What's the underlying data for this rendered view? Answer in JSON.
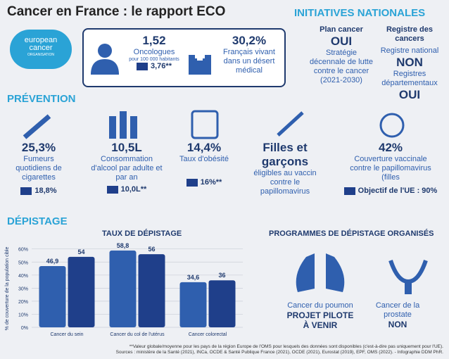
{
  "header": {
    "title": "Cancer en France : le rapport ECO",
    "logo": [
      "european",
      "cancer",
      "ORGANISATION"
    ]
  },
  "key_stats": {
    "oncologists": {
      "value": "1,52",
      "label": "Oncologues",
      "sub": "pour 100 000 habitants",
      "eu": "3,76**"
    },
    "desert": {
      "value": "30,2%",
      "label": "Français vivant dans un désert médical"
    }
  },
  "initiatives": {
    "heading": "INITIATIVES NATIONALES",
    "plan": {
      "title": "Plan cancer",
      "answer": "OUI",
      "detail": "Stratégie décennale de lutte contre le cancer (2021-2030)"
    },
    "registry": {
      "title": "Registre des cancers",
      "national": "Registre national",
      "national_answer": "NON",
      "departmental": "Registres départementaux",
      "departmental_answer": "OUI"
    }
  },
  "prevention": {
    "heading": "PRÉVENTION",
    "items": [
      {
        "value": "25,3%",
        "label": "Fumeurs quotidiens de cigarettes",
        "eu": "18,8%"
      },
      {
        "value": "10,5L",
        "label": "Consommation d'alcool par adulte et par an",
        "eu": "10,0L**"
      },
      {
        "value": "14,4%",
        "label": "Taux d'obésité",
        "eu": "16%**"
      },
      {
        "value": "Filles et garçons",
        "label": "éligibles au vaccin contre le papillomavirus"
      },
      {
        "value": "42%",
        "label": "Couverture vaccinale contre le papillomavirus (filles",
        "eu": "Objectif de l'UE : 90%"
      }
    ]
  },
  "screening": {
    "heading": "DÉPISTAGE",
    "programmes": {
      "title": "PROGRAMMES DE DÉPISTAGE ORGANISÉS",
      "lung": {
        "label": "Cancer du poumon",
        "status": "PROJET PILOTE À VENIR"
      },
      "prostate": {
        "label": "Cancer de la prostate",
        "status": "NON"
      }
    }
  },
  "chart_data": {
    "type": "bar",
    "title": "TAUX DE DÉPISTAGE",
    "y_label": "% de couverture de la population cible",
    "categories": [
      "Cancer du sein",
      "Cancer du col de l'utérus",
      "Cancer colorectal"
    ],
    "series": [
      {
        "color": "#2f5fae",
        "values": [
          46.9,
          58.8,
          34.6
        ],
        "value_labels": [
          "46,9",
          "58,8",
          "34,6"
        ]
      },
      {
        "color": "#1f3f8a",
        "values": [
          54,
          56,
          36
        ]
      }
    ],
    "ylim": [
      0,
      62
    ],
    "yticks": [
      {
        "value": 0,
        "label": "0%"
      },
      {
        "value": 10,
        "label": "10%"
      },
      {
        "value": 20,
        "label": "20%"
      },
      {
        "value": 30,
        "label": "30%"
      },
      {
        "value": 40,
        "label": "40%"
      },
      {
        "value": 50,
        "label": "50%"
      },
      {
        "value": 60,
        "label": "60%"
      }
    ],
    "grid": true
  },
  "footnotes": [
    "**Valeur globale/moyenne pour les pays de la région Europe de l'OMS pour lesquels des données sont disponibles (c'est-à-dire pas uniquement pour l'UE).",
    "Sources : ministère de la Santé (2021), INCa, OCDE & Santé Publique France (2021), OCDE (2021), Eurostat (2019), EPF, OMS (2022). - Infographie DDM PhR."
  ]
}
